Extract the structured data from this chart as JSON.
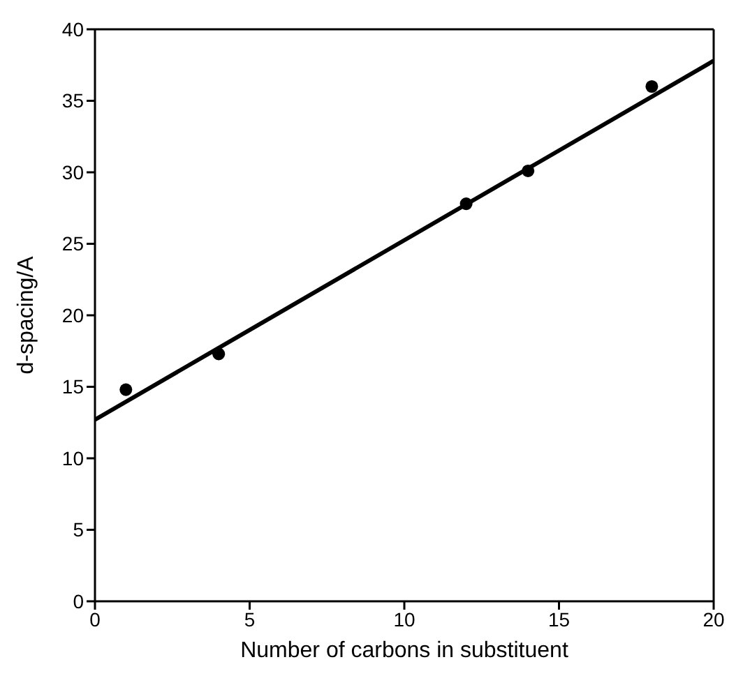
{
  "chart_data": {
    "type": "scatter",
    "xlabel": "Number of carbons in substituent",
    "ylabel": "d-spacing/A",
    "x": [
      1,
      4,
      12,
      14,
      18
    ],
    "series": [
      {
        "color": "#000000",
        "marker": "circle",
        "values": [
          14.8,
          17.3,
          27.8,
          30.1,
          36.0
        ]
      },
      {
        "type": "line",
        "color": "#000000",
        "marker": "none",
        "x": [
          0,
          20
        ],
        "values": [
          12.7,
          37.8
        ]
      }
    ],
    "xlim": [
      0,
      20
    ],
    "xticks": [
      0,
      5,
      10,
      15,
      20
    ],
    "ylim": [
      0,
      40
    ],
    "yticks": [
      0,
      5,
      10,
      15,
      20,
      25,
      30,
      35,
      40
    ],
    "grid": false,
    "legend": false,
    "line_style": "solid"
  }
}
